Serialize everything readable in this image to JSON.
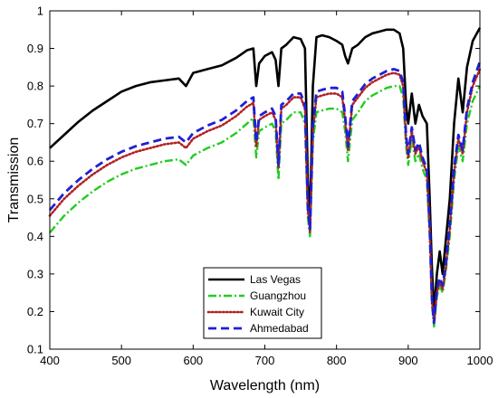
{
  "chart_data": {
    "type": "line",
    "title": "",
    "xlabel": "Wavelength (nm)",
    "ylabel": "Transmission",
    "xlim": [
      400,
      1000
    ],
    "ylim": [
      0.1,
      1
    ],
    "xticks": [
      "400",
      "500",
      "600",
      "700",
      "800",
      "900",
      "1000"
    ],
    "yticks": [
      "0.1",
      "0.2",
      "0.3",
      "0.4",
      "0.5",
      "0.6",
      "0.7",
      "0.8",
      "0.9",
      "1"
    ],
    "grid": false,
    "legend_position": "bottom-center",
    "series": [
      {
        "name": "Las Vegas",
        "color": "#000000",
        "style": "solid",
        "points": [
          [
            400,
            0.635
          ],
          [
            420,
            0.67
          ],
          [
            440,
            0.705
          ],
          [
            460,
            0.735
          ],
          [
            480,
            0.76
          ],
          [
            500,
            0.785
          ],
          [
            520,
            0.8
          ],
          [
            540,
            0.81
          ],
          [
            560,
            0.815
          ],
          [
            580,
            0.82
          ],
          [
            590,
            0.8
          ],
          [
            600,
            0.835
          ],
          [
            620,
            0.845
          ],
          [
            640,
            0.855
          ],
          [
            660,
            0.875
          ],
          [
            675,
            0.895
          ],
          [
            684,
            0.9
          ],
          [
            688,
            0.8
          ],
          [
            692,
            0.86
          ],
          [
            700,
            0.88
          ],
          [
            710,
            0.89
          ],
          [
            715,
            0.87
          ],
          [
            719,
            0.8
          ],
          [
            723,
            0.9
          ],
          [
            730,
            0.91
          ],
          [
            740,
            0.93
          ],
          [
            750,
            0.925
          ],
          [
            756,
            0.9
          ],
          [
            760,
            0.55
          ],
          [
            763,
            0.45
          ],
          [
            767,
            0.8
          ],
          [
            772,
            0.93
          ],
          [
            780,
            0.935
          ],
          [
            790,
            0.93
          ],
          [
            800,
            0.92
          ],
          [
            808,
            0.91
          ],
          [
            812,
            0.88
          ],
          [
            816,
            0.86
          ],
          [
            822,
            0.9
          ],
          [
            830,
            0.91
          ],
          [
            840,
            0.93
          ],
          [
            850,
            0.94
          ],
          [
            860,
            0.945
          ],
          [
            870,
            0.95
          ],
          [
            880,
            0.95
          ],
          [
            888,
            0.94
          ],
          [
            893,
            0.9
          ],
          [
            897,
            0.75
          ],
          [
            900,
            0.7
          ],
          [
            905,
            0.78
          ],
          [
            910,
            0.7
          ],
          [
            915,
            0.75
          ],
          [
            920,
            0.72
          ],
          [
            926,
            0.7
          ],
          [
            930,
            0.5
          ],
          [
            933,
            0.32
          ],
          [
            936,
            0.2
          ],
          [
            940,
            0.3
          ],
          [
            944,
            0.36
          ],
          [
            948,
            0.3
          ],
          [
            952,
            0.38
          ],
          [
            958,
            0.5
          ],
          [
            964,
            0.7
          ],
          [
            970,
            0.82
          ],
          [
            976,
            0.73
          ],
          [
            982,
            0.85
          ],
          [
            990,
            0.92
          ],
          [
            1000,
            0.955
          ]
        ]
      },
      {
        "name": "Guangzhou",
        "color": "#22cc22",
        "style": "dashdot",
        "points": [
          [
            400,
            0.41
          ],
          [
            420,
            0.455
          ],
          [
            440,
            0.49
          ],
          [
            460,
            0.52
          ],
          [
            480,
            0.545
          ],
          [
            500,
            0.565
          ],
          [
            520,
            0.58
          ],
          [
            540,
            0.59
          ],
          [
            560,
            0.6
          ],
          [
            580,
            0.605
          ],
          [
            590,
            0.59
          ],
          [
            600,
            0.615
          ],
          [
            620,
            0.635
          ],
          [
            640,
            0.65
          ],
          [
            660,
            0.675
          ],
          [
            675,
            0.7
          ],
          [
            684,
            0.715
          ],
          [
            688,
            0.61
          ],
          [
            692,
            0.68
          ],
          [
            700,
            0.69
          ],
          [
            710,
            0.7
          ],
          [
            715,
            0.68
          ],
          [
            719,
            0.55
          ],
          [
            723,
            0.7
          ],
          [
            730,
            0.71
          ],
          [
            740,
            0.73
          ],
          [
            750,
            0.73
          ],
          [
            756,
            0.7
          ],
          [
            760,
            0.45
          ],
          [
            763,
            0.4
          ],
          [
            767,
            0.65
          ],
          [
            772,
            0.73
          ],
          [
            780,
            0.735
          ],
          [
            790,
            0.74
          ],
          [
            800,
            0.74
          ],
          [
            808,
            0.73
          ],
          [
            812,
            0.68
          ],
          [
            816,
            0.6
          ],
          [
            822,
            0.71
          ],
          [
            830,
            0.73
          ],
          [
            840,
            0.76
          ],
          [
            850,
            0.775
          ],
          [
            860,
            0.785
          ],
          [
            870,
            0.795
          ],
          [
            880,
            0.8
          ],
          [
            888,
            0.8
          ],
          [
            893,
            0.77
          ],
          [
            897,
            0.64
          ],
          [
            900,
            0.59
          ],
          [
            905,
            0.66
          ],
          [
            910,
            0.6
          ],
          [
            915,
            0.62
          ],
          [
            920,
            0.58
          ],
          [
            926,
            0.55
          ],
          [
            930,
            0.4
          ],
          [
            933,
            0.22
          ],
          [
            936,
            0.16
          ],
          [
            940,
            0.24
          ],
          [
            944,
            0.27
          ],
          [
            948,
            0.25
          ],
          [
            952,
            0.3
          ],
          [
            958,
            0.4
          ],
          [
            964,
            0.55
          ],
          [
            970,
            0.64
          ],
          [
            976,
            0.6
          ],
          [
            982,
            0.7
          ],
          [
            990,
            0.76
          ],
          [
            1000,
            0.8
          ]
        ]
      },
      {
        "name": "Kuwait City",
        "color": "#b22222",
        "style": "dotted",
        "points": [
          [
            400,
            0.455
          ],
          [
            420,
            0.5
          ],
          [
            440,
            0.535
          ],
          [
            460,
            0.565
          ],
          [
            480,
            0.59
          ],
          [
            500,
            0.61
          ],
          [
            520,
            0.625
          ],
          [
            540,
            0.635
          ],
          [
            560,
            0.645
          ],
          [
            580,
            0.65
          ],
          [
            590,
            0.635
          ],
          [
            600,
            0.66
          ],
          [
            620,
            0.68
          ],
          [
            640,
            0.695
          ],
          [
            660,
            0.72
          ],
          [
            675,
            0.745
          ],
          [
            684,
            0.755
          ],
          [
            688,
            0.64
          ],
          [
            692,
            0.71
          ],
          [
            700,
            0.72
          ],
          [
            710,
            0.73
          ],
          [
            715,
            0.71
          ],
          [
            719,
            0.58
          ],
          [
            723,
            0.74
          ],
          [
            730,
            0.75
          ],
          [
            740,
            0.77
          ],
          [
            750,
            0.77
          ],
          [
            756,
            0.74
          ],
          [
            760,
            0.47
          ],
          [
            763,
            0.41
          ],
          [
            767,
            0.68
          ],
          [
            772,
            0.77
          ],
          [
            780,
            0.775
          ],
          [
            790,
            0.78
          ],
          [
            800,
            0.78
          ],
          [
            808,
            0.77
          ],
          [
            812,
            0.71
          ],
          [
            816,
            0.63
          ],
          [
            822,
            0.75
          ],
          [
            830,
            0.77
          ],
          [
            840,
            0.795
          ],
          [
            850,
            0.81
          ],
          [
            860,
            0.82
          ],
          [
            870,
            0.83
          ],
          [
            880,
            0.835
          ],
          [
            888,
            0.83
          ],
          [
            893,
            0.8
          ],
          [
            897,
            0.66
          ],
          [
            900,
            0.61
          ],
          [
            905,
            0.68
          ],
          [
            910,
            0.62
          ],
          [
            915,
            0.64
          ],
          [
            920,
            0.6
          ],
          [
            926,
            0.57
          ],
          [
            930,
            0.42
          ],
          [
            933,
            0.23
          ],
          [
            936,
            0.17
          ],
          [
            940,
            0.25
          ],
          [
            944,
            0.28
          ],
          [
            948,
            0.26
          ],
          [
            952,
            0.31
          ],
          [
            958,
            0.42
          ],
          [
            964,
            0.57
          ],
          [
            970,
            0.66
          ],
          [
            976,
            0.62
          ],
          [
            982,
            0.73
          ],
          [
            990,
            0.8
          ],
          [
            1000,
            0.845
          ]
        ]
      },
      {
        "name": "Ahmedabad",
        "color": "#1f1fd6",
        "style": "dashed",
        "points": [
          [
            400,
            0.47
          ],
          [
            420,
            0.515
          ],
          [
            440,
            0.55
          ],
          [
            460,
            0.58
          ],
          [
            480,
            0.605
          ],
          [
            500,
            0.625
          ],
          [
            520,
            0.64
          ],
          [
            540,
            0.65
          ],
          [
            560,
            0.66
          ],
          [
            580,
            0.665
          ],
          [
            590,
            0.65
          ],
          [
            600,
            0.675
          ],
          [
            620,
            0.695
          ],
          [
            640,
            0.71
          ],
          [
            660,
            0.735
          ],
          [
            675,
            0.76
          ],
          [
            684,
            0.77
          ],
          [
            688,
            0.65
          ],
          [
            692,
            0.72
          ],
          [
            700,
            0.73
          ],
          [
            710,
            0.74
          ],
          [
            715,
            0.72
          ],
          [
            719,
            0.59
          ],
          [
            723,
            0.75
          ],
          [
            730,
            0.76
          ],
          [
            740,
            0.78
          ],
          [
            750,
            0.78
          ],
          [
            756,
            0.75
          ],
          [
            760,
            0.48
          ],
          [
            763,
            0.42
          ],
          [
            767,
            0.69
          ],
          [
            772,
            0.785
          ],
          [
            780,
            0.79
          ],
          [
            790,
            0.795
          ],
          [
            800,
            0.795
          ],
          [
            808,
            0.785
          ],
          [
            812,
            0.72
          ],
          [
            816,
            0.64
          ],
          [
            822,
            0.76
          ],
          [
            830,
            0.78
          ],
          [
            840,
            0.805
          ],
          [
            850,
            0.82
          ],
          [
            860,
            0.83
          ],
          [
            870,
            0.84
          ],
          [
            880,
            0.845
          ],
          [
            888,
            0.84
          ],
          [
            893,
            0.81
          ],
          [
            897,
            0.67
          ],
          [
            900,
            0.62
          ],
          [
            905,
            0.69
          ],
          [
            910,
            0.63
          ],
          [
            915,
            0.65
          ],
          [
            920,
            0.61
          ],
          [
            926,
            0.58
          ],
          [
            930,
            0.43
          ],
          [
            933,
            0.24
          ],
          [
            936,
            0.17
          ],
          [
            940,
            0.26
          ],
          [
            944,
            0.29
          ],
          [
            948,
            0.27
          ],
          [
            952,
            0.32
          ],
          [
            958,
            0.43
          ],
          [
            964,
            0.58
          ],
          [
            970,
            0.67
          ],
          [
            976,
            0.63
          ],
          [
            982,
            0.74
          ],
          [
            990,
            0.81
          ],
          [
            1000,
            0.865
          ]
        ]
      }
    ]
  }
}
